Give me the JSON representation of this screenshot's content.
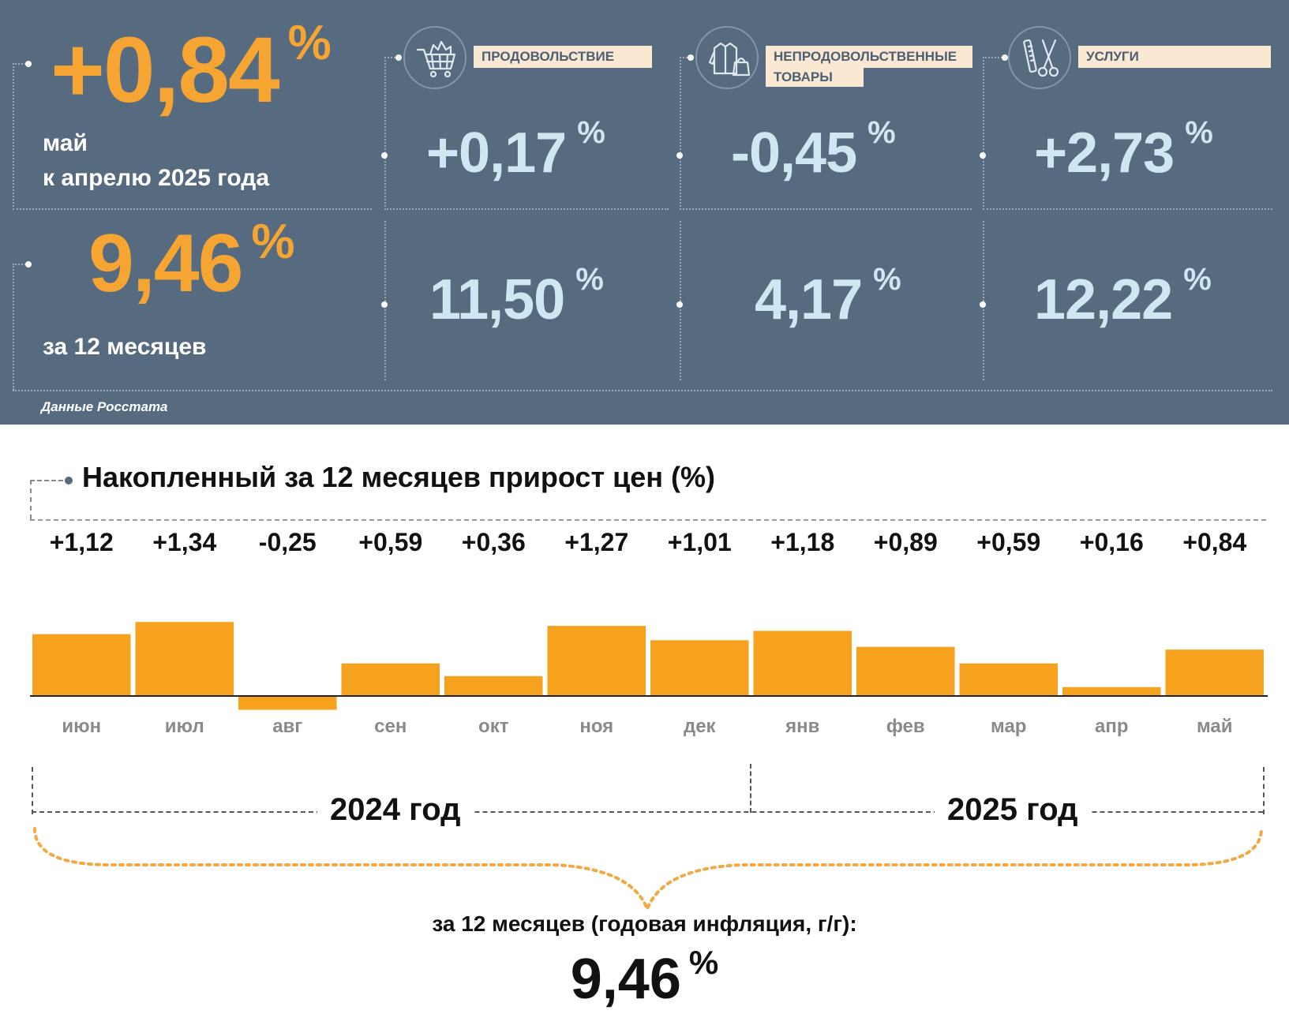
{
  "summary": {
    "month": {
      "value": "+0,84",
      "unit": "%",
      "label_line1": "май",
      "label_line2": "к апрелю 2025 года"
    },
    "year": {
      "value": "9,46",
      "unit": "%",
      "label": "за 12 месяцев"
    },
    "source": "Данные Росстата"
  },
  "categories": [
    {
      "icon": "shopping-cart-icon",
      "label": "ПРОДОВОЛЬСТВИЕ",
      "month_value": "+0,17",
      "year_value": "11,50",
      "unit": "%"
    },
    {
      "icon": "clothes-bag-icon",
      "label_line1": "НЕПРОДОВОЛЬСТВЕННЫЕ",
      "label_line2": "ТОВАРЫ",
      "month_value": "-0,45",
      "year_value": "4,17",
      "unit": "%"
    },
    {
      "icon": "comb-scissors-icon",
      "label": "УСЛУГИ",
      "month_value": "+2,73",
      "year_value": "12,22",
      "unit": "%"
    }
  ],
  "colors": {
    "panel": "#566b80",
    "accent_orange": "#f7a532",
    "value_blue": "#cfe6f3",
    "tag_bg": "#fbe8d2",
    "bar": "#f7a21e"
  },
  "chart_data": {
    "type": "bar",
    "title": "Накопленный за 12 месяцев прирост цен (%)",
    "categories": [
      "июн",
      "июл",
      "авг",
      "сен",
      "окт",
      "ноя",
      "дек",
      "янв",
      "фев",
      "мар",
      "апр",
      "май"
    ],
    "values": [
      1.12,
      1.34,
      -0.25,
      0.59,
      0.36,
      1.27,
      1.01,
      1.18,
      0.89,
      0.59,
      0.16,
      0.84
    ],
    "value_labels": [
      "+1,12",
      "+1,34",
      "-0,25",
      "+0,59",
      "+0,36",
      "+1,27",
      "+1,01",
      "+1,18",
      "+0,89",
      "+0,59",
      "+0,16",
      "+0,84"
    ],
    "year_groups": [
      {
        "label": "2024 год",
        "months": 7
      },
      {
        "label": "2025 год",
        "months": 5
      }
    ],
    "annual_caption": "за 12 месяцев (годовая инфляция, г/г):",
    "annual_value": "9,46",
    "annual_unit": "%",
    "ylim": [
      -0.25,
      1.34
    ],
    "grid": false,
    "legend": "none"
  }
}
